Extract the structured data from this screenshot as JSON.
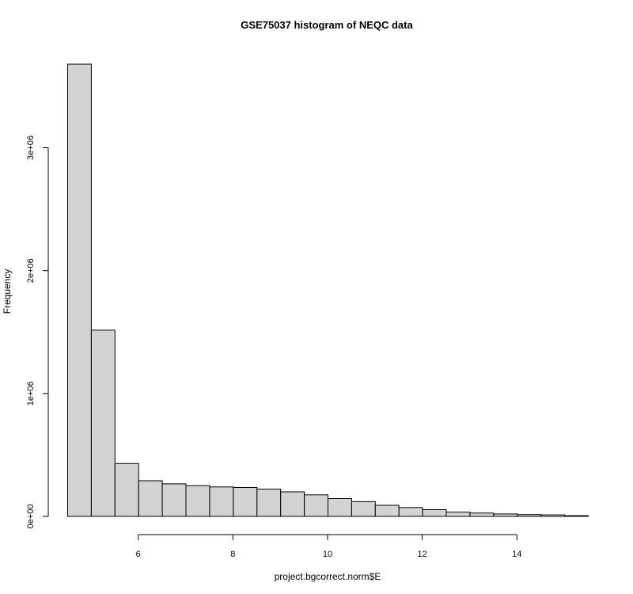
{
  "chart_data": {
    "type": "bar",
    "subtype": "histogram",
    "title": "GSE75037 histogram of NEQC data",
    "xlabel": "project.bgcorrect.norm$E",
    "ylabel": "Frequency",
    "bin_edges": [
      4.5,
      5.0,
      5.5,
      6.0,
      6.5,
      7.0,
      7.5,
      8.0,
      8.5,
      9.0,
      9.5,
      10.0,
      10.5,
      11.0,
      11.5,
      12.0,
      12.5,
      13.0,
      13.5,
      14.0,
      14.5,
      15.0,
      15.5
    ],
    "values": [
      3680000,
      1515000,
      430000,
      290000,
      265000,
      250000,
      240000,
      235000,
      222000,
      200000,
      175000,
      145000,
      120000,
      90000,
      72000,
      55000,
      35000,
      27000,
      20000,
      15000,
      12000,
      6000
    ],
    "xlim": [
      4.5,
      15.5
    ],
    "ylim": [
      0,
      3680000
    ],
    "x_ticks": [
      6,
      8,
      10,
      12,
      14
    ],
    "x_tick_labels": [
      "6",
      "8",
      "10",
      "12",
      "14"
    ],
    "y_ticks": [
      0,
      1000000,
      2000000,
      3000000
    ],
    "y_tick_labels": [
      "0e+00",
      "1e+06",
      "2e+06",
      "3e+06"
    ],
    "grid": false,
    "bar_color": "#d3d3d3",
    "edge_color": "#000000"
  }
}
